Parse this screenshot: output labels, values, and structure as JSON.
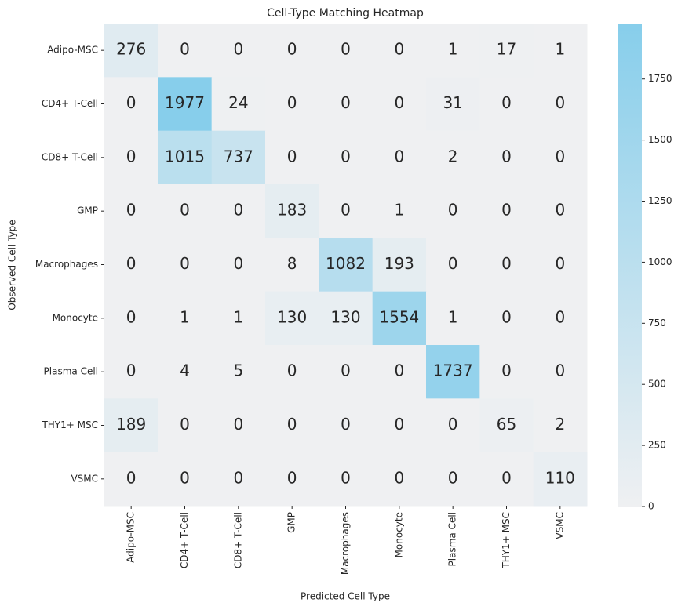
{
  "chart_data": {
    "type": "heatmap",
    "title": "Cell-Type Matching Heatmap",
    "xlabel": "Predicted Cell Type",
    "ylabel": "Observed Cell Type",
    "x_categories": [
      "Adipo-MSC",
      "CD4+ T-Cell",
      "CD8+ T-Cell",
      "GMP",
      "Macrophages",
      "Monocyte",
      "Plasma Cell",
      "THY1+ MSC",
      "VSMC"
    ],
    "y_categories": [
      "Adipo-MSC",
      "CD4+ T-Cell",
      "CD8+ T-Cell",
      "GMP",
      "Macrophages",
      "Monocyte",
      "Plasma Cell",
      "THY1+ MSC",
      "VSMC"
    ],
    "values": [
      [
        276,
        0,
        0,
        0,
        0,
        0,
        1,
        17,
        1
      ],
      [
        0,
        1977,
        24,
        0,
        0,
        0,
        31,
        0,
        0
      ],
      [
        0,
        1015,
        737,
        0,
        0,
        0,
        2,
        0,
        0
      ],
      [
        0,
        0,
        0,
        183,
        0,
        1,
        0,
        0,
        0
      ],
      [
        0,
        0,
        0,
        8,
        1082,
        193,
        0,
        0,
        0
      ],
      [
        0,
        1,
        1,
        130,
        130,
        1554,
        1,
        0,
        0
      ],
      [
        0,
        4,
        5,
        0,
        0,
        0,
        1737,
        0,
        0
      ],
      [
        189,
        0,
        0,
        0,
        0,
        0,
        0,
        65,
        2
      ],
      [
        0,
        0,
        0,
        0,
        0,
        0,
        0,
        0,
        110
      ]
    ],
    "zlim": [
      0,
      1977
    ],
    "zticks": [
      0,
      250,
      500,
      750,
      1000,
      1250,
      1500,
      1750
    ],
    "colors": [
      "#eff0f2",
      "#87ceeb"
    ]
  }
}
